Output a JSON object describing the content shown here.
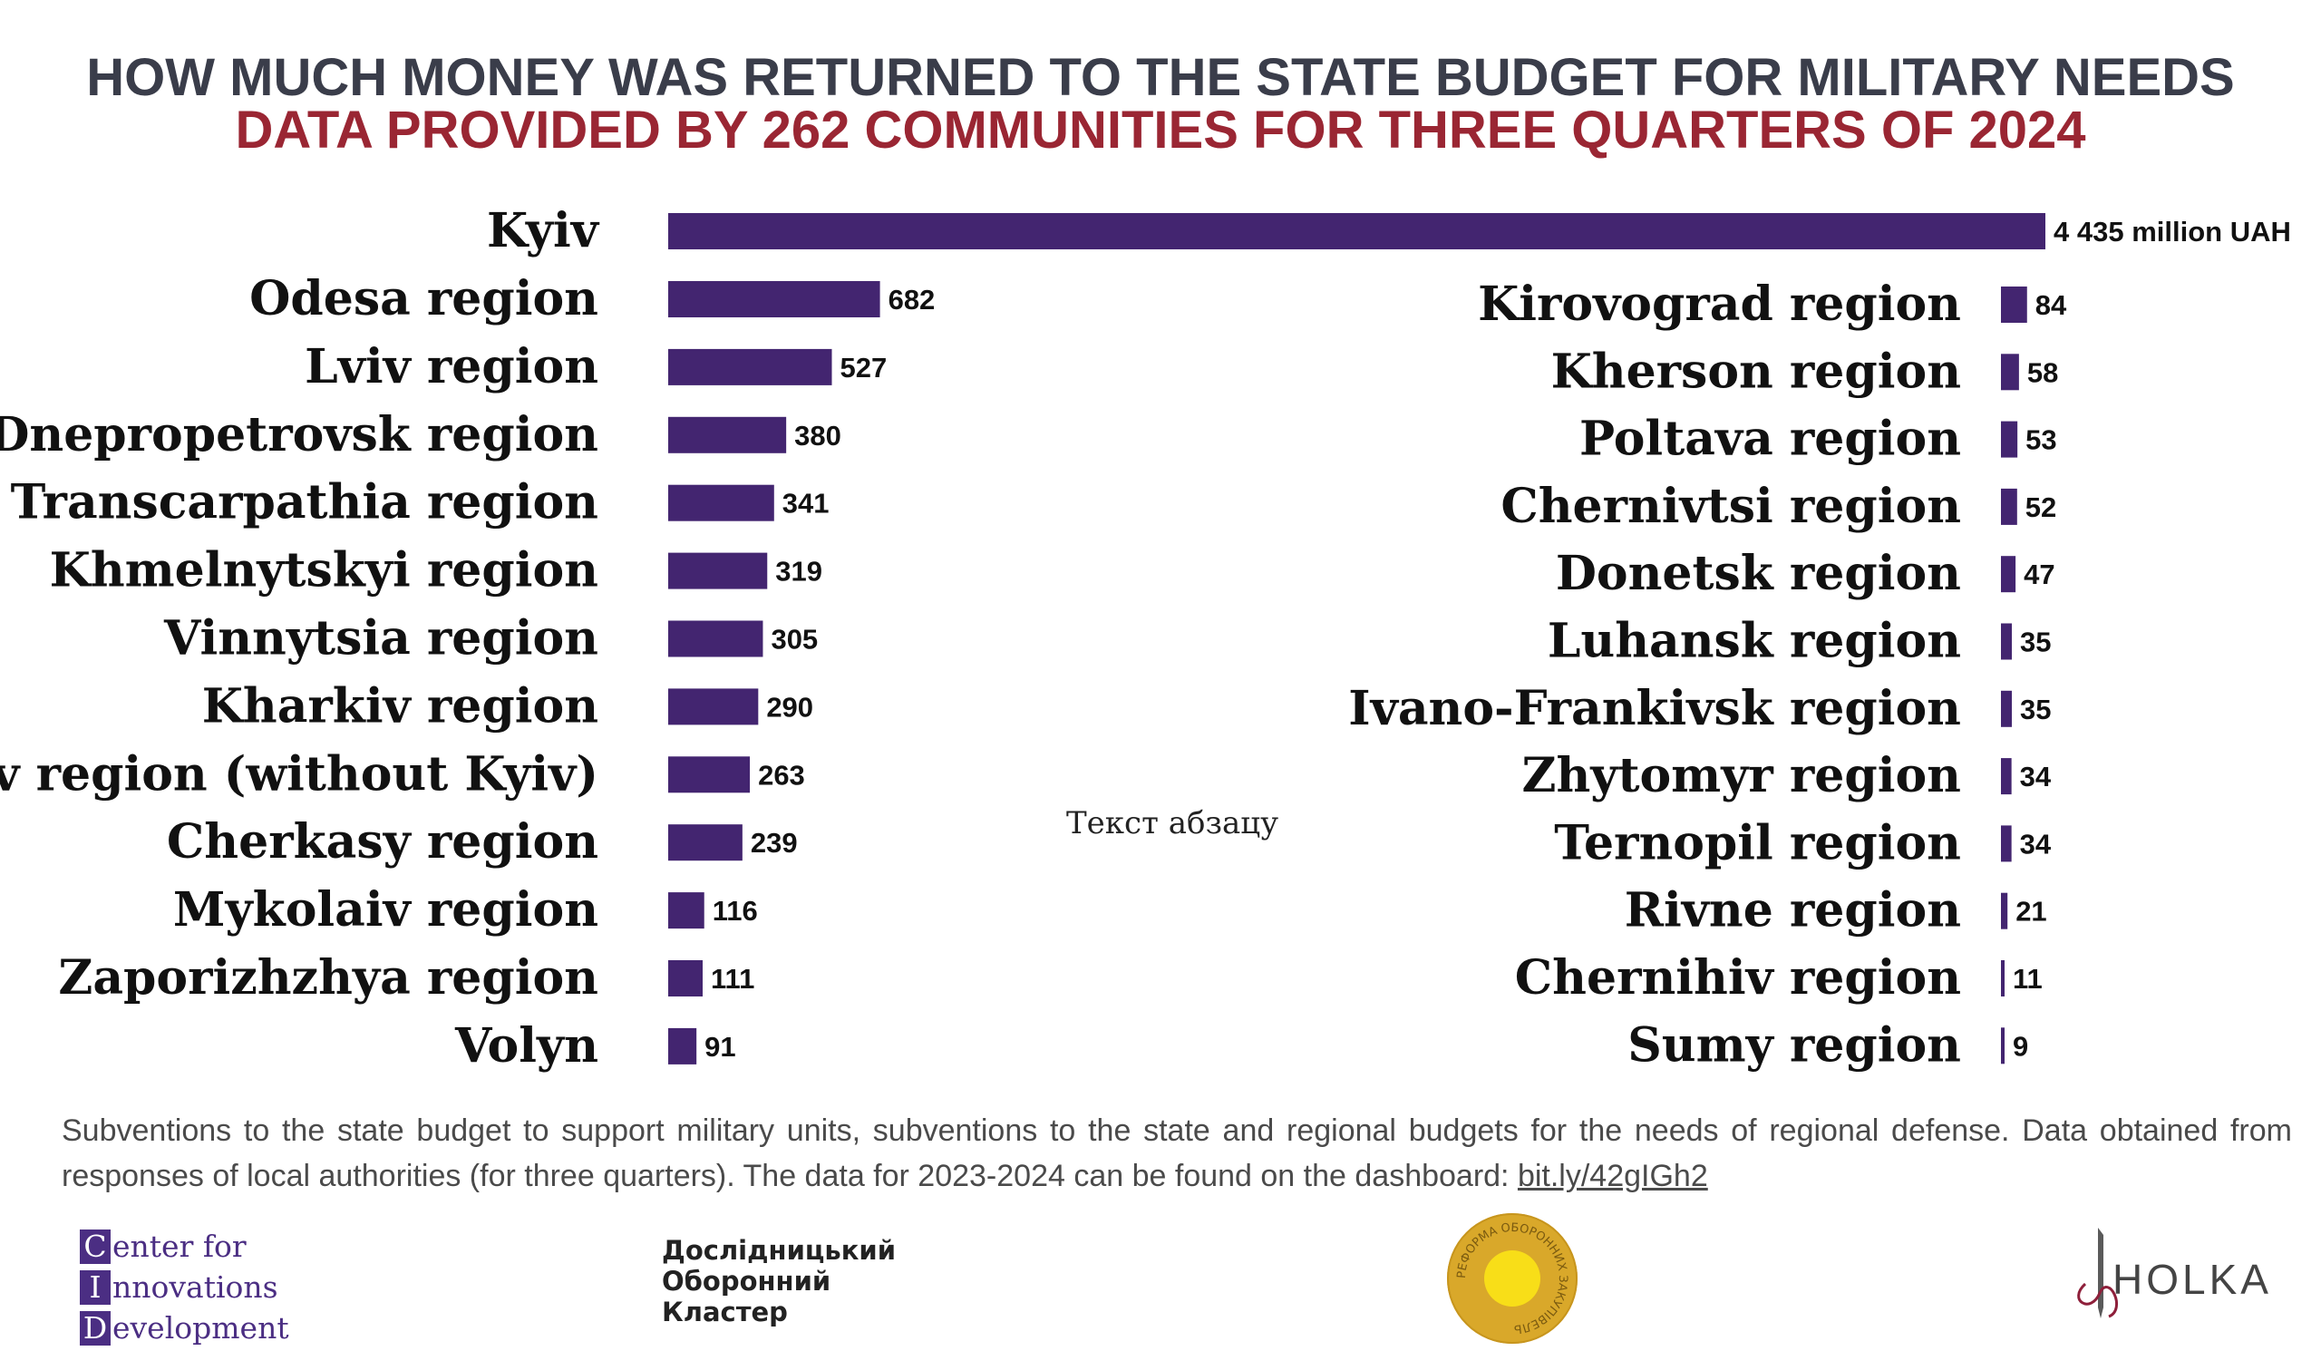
{
  "title_line1": "HOW MUCH MONEY WAS RETURNED TO THE STATE BUDGET FOR MILITARY NEEDS",
  "title_line2": "DATA PROVIDED BY 262 COMMUNITIES FOR THREE QUARTERS OF 2024",
  "colors": {
    "bar": "#432570",
    "title1": "#3a3d4a",
    "title2": "#9a2633"
  },
  "paragraph_placeholder": "Текст абзацу",
  "note": {
    "text": "Subventions to the state budget to support military units, subventions to the state and regional budgets for the needs of regional defense. Data obtained from responses of local authorities (for three quarters). The data for 2023-2024 can be found on the dashboard: ",
    "link": "bit.ly/42gIGh2"
  },
  "logos": {
    "cid": {
      "letters": [
        "C",
        "I",
        "D"
      ],
      "rest": [
        "enter for",
        "nnovations",
        "evelopment"
      ]
    },
    "dok": {
      "lines": [
        "Дослідницький",
        "Оборонний",
        "Кластер"
      ]
    },
    "seal": {
      "text": "РЕФОРМА ОБОРОННИХ ЗАКУПІВЕЛЬ"
    },
    "holka": {
      "text": "HOLKA"
    }
  },
  "chart_data": {
    "type": "bar",
    "orientation": "horizontal",
    "unit": "million UAH",
    "series": [
      {
        "panel": "left",
        "categories": [
          "Kyiv",
          "Odesa region",
          "Lviv region",
          "Dnepropetrovsk region",
          "Transcarpathia region",
          "Khmelnytskyi region",
          "Vinnytsia region",
          "Kharkiv region",
          "Kyiv region (without Kyiv)",
          "Cherkasy region",
          "Mykolaiv region",
          "Zaporizhzhya region",
          "Volyn"
        ],
        "values": [
          4435,
          682,
          527,
          380,
          341,
          319,
          305,
          290,
          263,
          239,
          116,
          111,
          91
        ],
        "labels": [
          "4 435 million UAH",
          "682",
          "527",
          "380",
          "341",
          "319",
          "305",
          "290",
          "263",
          "239",
          "116",
          "111",
          "91"
        ]
      },
      {
        "panel": "right",
        "categories": [
          "Kirovograd region",
          "Kherson region",
          "Poltava region",
          "Chernivtsi region",
          "Donetsk region",
          "Luhansk region",
          "Ivano-Frankivsk region",
          "Zhytomyr region",
          "Ternopil region",
          "Rivne region",
          "Chernihiv region",
          "Sumy region"
        ],
        "values": [
          84,
          58,
          53,
          52,
          47,
          35,
          35,
          34,
          34,
          21,
          11,
          9
        ],
        "labels": [
          "84",
          "58",
          "53",
          "52",
          "47",
          "35",
          "35",
          "34",
          "34",
          "21",
          "11",
          "9"
        ]
      }
    ]
  }
}
